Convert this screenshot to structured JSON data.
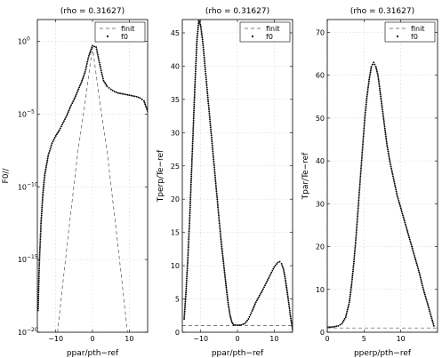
{
  "chart_data": [
    {
      "type": "line",
      "title": "(rho = 0.31627)",
      "xlabel": "ppar/pth−ref",
      "ylabel": "F0//",
      "xlim": [
        -15,
        15
      ],
      "ylim_log10": [
        -20,
        1.5
      ],
      "yscale": "log",
      "grid": true,
      "legend_position": "top-right",
      "x_ticks": [
        {
          "v": -10,
          "label": "−10"
        },
        {
          "v": 0,
          "label": "0"
        },
        {
          "v": 10,
          "label": "10"
        }
      ],
      "y_ticks": [
        {
          "v": 0,
          "label": "10",
          "exp": "0"
        },
        {
          "v": -5,
          "label": "10",
          "exp": "−5"
        },
        {
          "v": -10,
          "label": "10",
          "exp": "−10"
        },
        {
          "v": -15,
          "label": "10",
          "exp": "−15"
        },
        {
          "v": -20,
          "label": "10",
          "exp": "−20"
        }
      ],
      "series": [
        {
          "name": "finit",
          "style": "dashed",
          "x": [
            -9.5,
            -8,
            -6,
            -4,
            -2,
            0,
            2,
            4,
            6,
            8,
            9.5
          ],
          "y_log10": [
            -20,
            -16.5,
            -12,
            -7.6,
            -4.2,
            -0.4,
            -4.2,
            -7.6,
            -12,
            -16.5,
            -20
          ]
        },
        {
          "name": "f0",
          "style": "dotted",
          "x": [
            -14.8,
            -14.5,
            -14,
            -13.5,
            -13,
            -12,
            -11,
            -10,
            -9,
            -8,
            -7,
            -6,
            -5,
            -4,
            -3,
            -2,
            -1,
            0,
            1,
            2,
            3,
            4,
            5,
            6,
            7,
            8,
            9,
            10,
            11,
            12,
            13,
            14,
            15
          ],
          "y_log10": [
            -18.5,
            -15.5,
            -12.5,
            -10.5,
            -9.2,
            -7.8,
            -7,
            -6.5,
            -6.1,
            -5.6,
            -5.1,
            -4.5,
            -4,
            -3.4,
            -2.8,
            -2.1,
            -1,
            -0.3,
            -0.4,
            -1.6,
            -2.7,
            -3.1,
            -3.3,
            -3.45,
            -3.55,
            -3.6,
            -3.65,
            -3.7,
            -3.75,
            -3.8,
            -3.9,
            -4.1,
            -4.8
          ]
        }
      ]
    },
    {
      "type": "line",
      "title": "(rho = 0.31627)",
      "xlabel": "ppar/pth−ref",
      "ylabel": "Tperp/Te−ref",
      "xlim": [
        -15,
        15
      ],
      "ylim": [
        0,
        47
      ],
      "grid": true,
      "legend_position": "top-right",
      "x_ticks": [
        {
          "v": -10,
          "label": "−10"
        },
        {
          "v": 0,
          "label": "0"
        },
        {
          "v": 10,
          "label": "10"
        }
      ],
      "y_ticks": [
        {
          "v": 0,
          "label": "0"
        },
        {
          "v": 5,
          "label": "5"
        },
        {
          "v": 10,
          "label": "10"
        },
        {
          "v": 15,
          "label": "15"
        },
        {
          "v": 20,
          "label": "20"
        },
        {
          "v": 25,
          "label": "25"
        },
        {
          "v": 30,
          "label": "30"
        },
        {
          "v": 35,
          "label": "35"
        },
        {
          "v": 40,
          "label": "40"
        },
        {
          "v": 45,
          "label": "45"
        }
      ],
      "series": [
        {
          "name": "finit",
          "style": "dashed",
          "x": [
            -15,
            15
          ],
          "y": [
            1,
            1
          ]
        },
        {
          "name": "f0",
          "style": "dotted",
          "x": [
            -14.5,
            -14,
            -13.5,
            -13,
            -12.5,
            -12,
            -11.5,
            -11,
            -10.5,
            -10,
            -9.5,
            -9,
            -8.5,
            -8,
            -7.5,
            -7,
            -6.5,
            -6,
            -5.5,
            -5,
            -4.5,
            -4,
            -3.5,
            -3,
            -2.5,
            -2,
            -1.5,
            -1,
            0,
            1,
            2,
            3,
            4,
            5,
            6,
            7,
            8,
            9,
            10,
            11,
            11.5,
            12,
            12.5,
            13,
            13.5,
            14,
            14.5,
            15
          ],
          "y": [
            2,
            6,
            11,
            17,
            24,
            31,
            38,
            44,
            47,
            46,
            44,
            41,
            38,
            35,
            32,
            29,
            26,
            23,
            20,
            17,
            14,
            11.5,
            9,
            6.5,
            4.2,
            2.5,
            1.5,
            1.1,
            1.05,
            1.1,
            1.3,
            2,
            3.2,
            4.5,
            5.5,
            6.5,
            7.6,
            8.7,
            9.8,
            10.5,
            10.6,
            10.3,
            9.5,
            8.1,
            6.2,
            4.2,
            2.1,
            0.4
          ]
        }
      ]
    },
    {
      "type": "line",
      "title": "(rho = 0.31627)",
      "xlabel": "pperp/pth−ref",
      "ylabel": "Tpar/Te−ref",
      "xlim": [
        0,
        15
      ],
      "ylim": [
        0,
        73
      ],
      "grid": true,
      "legend_position": "top-right",
      "x_ticks": [
        {
          "v": 0,
          "label": "0"
        },
        {
          "v": 5,
          "label": "5"
        },
        {
          "v": 10,
          "label": "10"
        }
      ],
      "y_ticks": [
        {
          "v": 0,
          "label": "0"
        },
        {
          "v": 10,
          "label": "10"
        },
        {
          "v": 20,
          "label": "20"
        },
        {
          "v": 30,
          "label": "30"
        },
        {
          "v": 40,
          "label": "40"
        },
        {
          "v": 50,
          "label": "50"
        },
        {
          "v": 60,
          "label": "60"
        },
        {
          "v": 70,
          "label": "70"
        }
      ],
      "series": [
        {
          "name": "finit",
          "style": "dashed",
          "x": [
            0,
            15
          ],
          "y": [
            1,
            1
          ]
        },
        {
          "name": "f0",
          "style": "dotted",
          "x": [
            0,
            0.5,
            1,
            1.5,
            2,
            2.5,
            3,
            3.3,
            3.6,
            3.9,
            4.2,
            4.5,
            4.8,
            5.1,
            5.4,
            5.7,
            6,
            6.3,
            6.6,
            6.9,
            7.2,
            7.5,
            7.8,
            8.1,
            8.5,
            9,
            9.5,
            10,
            10.5,
            11,
            11.5,
            12,
            12.5,
            13,
            13.5,
            14,
            14.5
          ],
          "y": [
            1.2,
            1.2,
            1.3,
            1.5,
            2,
            3.5,
            7,
            11,
            16,
            22,
            29,
            36,
            43,
            50,
            55,
            59,
            62,
            63,
            62,
            60,
            56,
            52,
            48,
            44,
            40,
            36,
            32,
            29,
            26,
            23,
            20,
            17,
            14,
            10.5,
            7.5,
            4.5,
            1.5
          ]
        }
      ]
    }
  ]
}
